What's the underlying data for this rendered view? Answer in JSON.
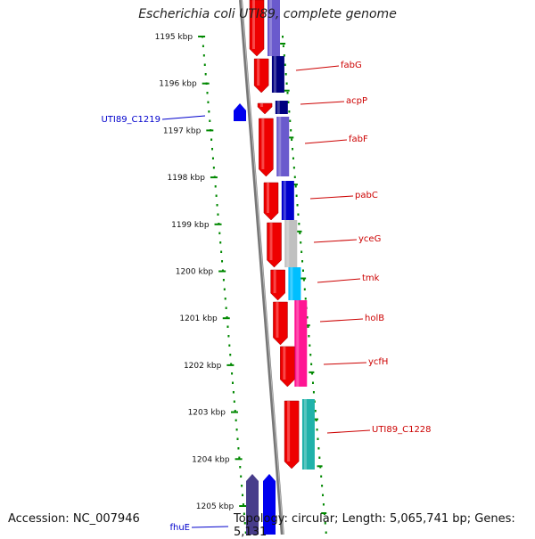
{
  "title": "Escherichia coli UTI89, complete genome",
  "footer": {
    "accession": "Accession: NC_007946",
    "summary": "Topology: circular; Length: 5,065,741 bp; Genes: 5,131"
  },
  "kbp_ticks": [
    "1195 kbp",
    "1196 kbp",
    "1197 kbp",
    "1198 kbp",
    "1199 kbp",
    "1200 kbp",
    "1201 kbp",
    "1202 kbp",
    "1203 kbp",
    "1204 kbp",
    "1205 kbp"
  ],
  "gene_labels": [
    {
      "text": "fabG",
      "color": "#cc0000",
      "side": "right"
    },
    {
      "text": "acpP",
      "color": "#cc0000",
      "side": "right"
    },
    {
      "text": "fabF",
      "color": "#cc0000",
      "side": "right"
    },
    {
      "text": "pabC",
      "color": "#cc0000",
      "side": "right"
    },
    {
      "text": "yceG",
      "color": "#cc0000",
      "side": "right"
    },
    {
      "text": "tmk",
      "color": "#cc0000",
      "side": "right"
    },
    {
      "text": "holB",
      "color": "#cc0000",
      "side": "right"
    },
    {
      "text": "ycfH",
      "color": "#cc0000",
      "side": "right"
    },
    {
      "text": "UTI89_C1228",
      "color": "#cc0000",
      "side": "right"
    },
    {
      "text": "UTI89_C1219",
      "color": "#0000cc",
      "side": "left"
    },
    {
      "text": "fhuE",
      "color": "#0000cc",
      "side": "left"
    }
  ],
  "colors": {
    "forward_gene": "#ee0000",
    "reverse_gene": "#0000ee",
    "backbone": "#777777",
    "ruler": "#008800",
    "cog_colors": [
      "#6a5acd",
      "#000080",
      "#6a5acd",
      "#4682b4",
      "#0000cd",
      "#c0c0c0",
      "#00bfff",
      "#ff1493",
      "#20b2aa",
      "#483d8b",
      "#0000ff"
    ]
  }
}
